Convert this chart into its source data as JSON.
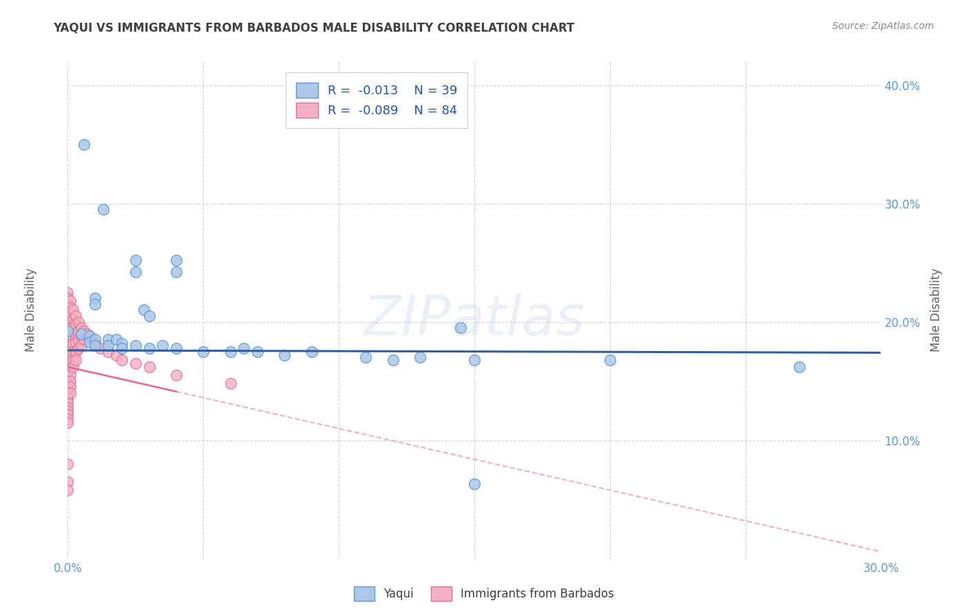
{
  "title": "YAQUI VS IMMIGRANTS FROM BARBADOS MALE DISABILITY CORRELATION CHART",
  "source": "Source: ZipAtlas.com",
  "ylabel": "Male Disability",
  "xlim": [
    0.0,
    0.3
  ],
  "ylim": [
    0.0,
    0.42
  ],
  "x_ticks": [
    0.0,
    0.05,
    0.1,
    0.15,
    0.2,
    0.25,
    0.3
  ],
  "y_ticks": [
    0.0,
    0.1,
    0.2,
    0.3,
    0.4
  ],
  "watermark_text": "ZIPatlas",
  "background_color": "#ffffff",
  "grid_color": "#c8c8c8",
  "title_color": "#404040",
  "tick_color": "#5b9bd5",
  "trend_yaqui_color": "#2e5fa3",
  "trend_barbados_color": "#e07090",
  "yaqui_face": "#aec6e8",
  "yaqui_edge": "#5b9bd5",
  "barbados_face": "#f4b0c4",
  "barbados_edge": "#e07090",
  "yaqui_points": [
    [
      0.006,
      0.35
    ],
    [
      0.013,
      0.295
    ],
    [
      0.025,
      0.252
    ],
    [
      0.025,
      0.242
    ],
    [
      0.04,
      0.252
    ],
    [
      0.04,
      0.242
    ],
    [
      0.01,
      0.22
    ],
    [
      0.01,
      0.215
    ],
    [
      0.028,
      0.21
    ],
    [
      0.03,
      0.205
    ],
    [
      0.0,
      0.192
    ],
    [
      0.005,
      0.19
    ],
    [
      0.008,
      0.188
    ],
    [
      0.008,
      0.183
    ],
    [
      0.01,
      0.185
    ],
    [
      0.01,
      0.18
    ],
    [
      0.015,
      0.185
    ],
    [
      0.015,
      0.18
    ],
    [
      0.018,
      0.185
    ],
    [
      0.02,
      0.182
    ],
    [
      0.02,
      0.178
    ],
    [
      0.025,
      0.18
    ],
    [
      0.03,
      0.178
    ],
    [
      0.035,
      0.18
    ],
    [
      0.04,
      0.178
    ],
    [
      0.05,
      0.175
    ],
    [
      0.06,
      0.175
    ],
    [
      0.065,
      0.178
    ],
    [
      0.07,
      0.175
    ],
    [
      0.08,
      0.172
    ],
    [
      0.09,
      0.175
    ],
    [
      0.11,
      0.17
    ],
    [
      0.12,
      0.168
    ],
    [
      0.13,
      0.17
    ],
    [
      0.15,
      0.168
    ],
    [
      0.2,
      0.168
    ],
    [
      0.27,
      0.162
    ],
    [
      0.15,
      0.063
    ],
    [
      0.145,
      0.195
    ]
  ],
  "barbados_points": [
    [
      0.0,
      0.225
    ],
    [
      0.0,
      0.22
    ],
    [
      0.0,
      0.215
    ],
    [
      0.0,
      0.21
    ],
    [
      0.0,
      0.205
    ],
    [
      0.0,
      0.2
    ],
    [
      0.0,
      0.198
    ],
    [
      0.0,
      0.195
    ],
    [
      0.0,
      0.192
    ],
    [
      0.0,
      0.188
    ],
    [
      0.0,
      0.185
    ],
    [
      0.0,
      0.182
    ],
    [
      0.0,
      0.178
    ],
    [
      0.0,
      0.175
    ],
    [
      0.0,
      0.172
    ],
    [
      0.0,
      0.168
    ],
    [
      0.0,
      0.165
    ],
    [
      0.0,
      0.162
    ],
    [
      0.0,
      0.158
    ],
    [
      0.0,
      0.155
    ],
    [
      0.0,
      0.152
    ],
    [
      0.0,
      0.148
    ],
    [
      0.0,
      0.145
    ],
    [
      0.0,
      0.142
    ],
    [
      0.0,
      0.138
    ],
    [
      0.0,
      0.135
    ],
    [
      0.0,
      0.132
    ],
    [
      0.0,
      0.128
    ],
    [
      0.0,
      0.125
    ],
    [
      0.0,
      0.122
    ],
    [
      0.0,
      0.118
    ],
    [
      0.0,
      0.115
    ],
    [
      0.001,
      0.218
    ],
    [
      0.001,
      0.212
    ],
    [
      0.001,
      0.206
    ],
    [
      0.001,
      0.2
    ],
    [
      0.001,
      0.195
    ],
    [
      0.001,
      0.19
    ],
    [
      0.001,
      0.185
    ],
    [
      0.001,
      0.18
    ],
    [
      0.001,
      0.175
    ],
    [
      0.001,
      0.17
    ],
    [
      0.001,
      0.165
    ],
    [
      0.001,
      0.16
    ],
    [
      0.001,
      0.155
    ],
    [
      0.001,
      0.15
    ],
    [
      0.001,
      0.145
    ],
    [
      0.001,
      0.14
    ],
    [
      0.002,
      0.21
    ],
    [
      0.002,
      0.202
    ],
    [
      0.002,
      0.195
    ],
    [
      0.002,
      0.188
    ],
    [
      0.002,
      0.182
    ],
    [
      0.002,
      0.175
    ],
    [
      0.002,
      0.168
    ],
    [
      0.002,
      0.162
    ],
    [
      0.003,
      0.205
    ],
    [
      0.003,
      0.198
    ],
    [
      0.003,
      0.19
    ],
    [
      0.003,
      0.183
    ],
    [
      0.003,
      0.175
    ],
    [
      0.003,
      0.168
    ],
    [
      0.004,
      0.2
    ],
    [
      0.004,
      0.192
    ],
    [
      0.004,
      0.185
    ],
    [
      0.004,
      0.178
    ],
    [
      0.005,
      0.195
    ],
    [
      0.005,
      0.188
    ],
    [
      0.005,
      0.18
    ],
    [
      0.006,
      0.192
    ],
    [
      0.006,
      0.185
    ],
    [
      0.007,
      0.19
    ],
    [
      0.008,
      0.188
    ],
    [
      0.009,
      0.185
    ],
    [
      0.01,
      0.182
    ],
    [
      0.012,
      0.178
    ],
    [
      0.015,
      0.175
    ],
    [
      0.018,
      0.172
    ],
    [
      0.02,
      0.168
    ],
    [
      0.025,
      0.165
    ],
    [
      0.03,
      0.162
    ],
    [
      0.04,
      0.155
    ],
    [
      0.0,
      0.065
    ],
    [
      0.0,
      0.058
    ],
    [
      0.06,
      0.148
    ],
    [
      0.0,
      0.08
    ]
  ]
}
